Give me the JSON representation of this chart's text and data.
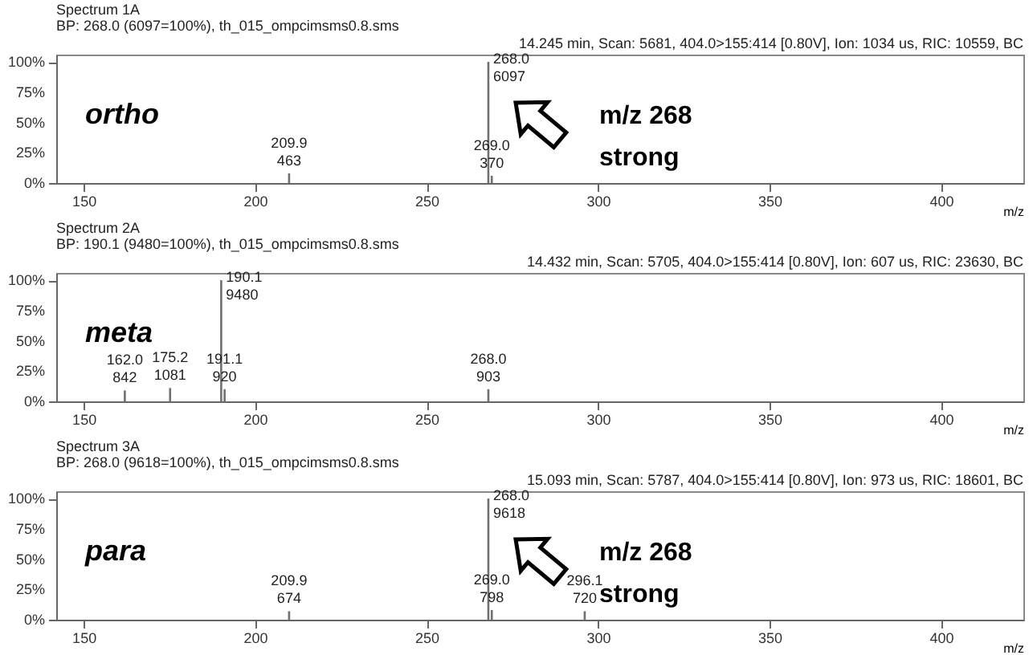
{
  "chart_data": [
    {
      "type": "bar",
      "title": "Spectrum 1A",
      "subtitle": "BP: 268.0 (6097=100%), th_015_ompcimsms0.8.sms",
      "xlabel": "m/z",
      "color": "#707070",
      "x": [
        209.9,
        268.0,
        269.0
      ],
      "values": [
        8,
        100,
        6
      ],
      "xlim": [
        142,
        424
      ],
      "xticks": [
        150,
        200,
        250,
        300,
        350,
        400
      ],
      "ylim": [
        0,
        106
      ],
      "yticks": [
        {
          "value": 0,
          "label": "0%"
        },
        {
          "value": 25,
          "label": "25%"
        },
        {
          "value": 50,
          "label": "50%"
        },
        {
          "value": 75,
          "label": "75%"
        },
        {
          "value": 100,
          "label": "100%"
        }
      ],
      "annotations": [
        "14.245 min, Scan: 5681, 404.0>155:414 [0.80V], Ion: 1034 us, RIC: 10559, BC",
        "ortho",
        {
          "text": "209.9\n463",
          "x": 209.9,
          "y": 8
        },
        {
          "text": "268.0\n6097",
          "x": 268.0,
          "y": 100
        },
        {
          "text": "269.0\n370",
          "x": 269.0,
          "y": 6
        },
        "m/z 268",
        "strong"
      ]
    },
    {
      "type": "bar",
      "title": "Spectrum 2A",
      "subtitle": "BP: 190.1 (9480=100%), th_015_ompcimsms0.8.sms",
      "xlabel": "m/z",
      "color": "#707070",
      "x": [
        162.0,
        175.2,
        190.1,
        191.1,
        268.0
      ],
      "values": [
        9,
        11,
        100,
        10,
        10
      ],
      "xlim": [
        142,
        424
      ],
      "xticks": [
        150,
        200,
        250,
        300,
        350,
        400
      ],
      "ylim": [
        0,
        106
      ],
      "yticks": [
        {
          "value": 0,
          "label": "0%"
        },
        {
          "value": 25,
          "label": "25%"
        },
        {
          "value": 50,
          "label": "50%"
        },
        {
          "value": 75,
          "label": "75%"
        },
        {
          "value": 100,
          "label": "100%"
        }
      ],
      "annotations": [
        "14.432 min, Scan: 5705, 404.0>155:414 [0.80V], Ion: 607 us, RIC: 23630, BC",
        "meta",
        {
          "text": "162.0\n842",
          "x": 162.0,
          "y": 9
        },
        {
          "text": "175.2\n1081",
          "x": 175.2,
          "y": 11
        },
        {
          "text": "190.1\n9480",
          "x": 190.1,
          "y": 100
        },
        {
          "text": "191.1\n920",
          "x": 191.1,
          "y": 10
        },
        {
          "text": "268.0\n903",
          "x": 268.0,
          "y": 10
        }
      ]
    },
    {
      "type": "bar",
      "title": "Spectrum 3A",
      "subtitle": "BP: 268.0 (9618=100%), th_015_ompcimsms0.8.sms",
      "xlabel": "m/z",
      "color": "#707070",
      "x": [
        209.9,
        268.0,
        269.0,
        296.1
      ],
      "values": [
        7,
        100,
        8,
        7
      ],
      "xlim": [
        142,
        424
      ],
      "xticks": [
        150,
        200,
        250,
        300,
        350,
        400
      ],
      "ylim": [
        0,
        106
      ],
      "yticks": [
        {
          "value": 0,
          "label": "0%"
        },
        {
          "value": 25,
          "label": "25%"
        },
        {
          "value": 50,
          "label": "50%"
        },
        {
          "value": 75,
          "label": "75%"
        },
        {
          "value": 100,
          "label": "100%"
        }
      ],
      "annotations": [
        "15.093 min, Scan: 5787, 404.0>155:414 [0.80V], Ion: 973 us, RIC: 18601, BC",
        "para",
        {
          "text": "209.9\n674",
          "x": 209.9,
          "y": 7
        },
        {
          "text": "268.0\n9618",
          "x": 268.0,
          "y": 100
        },
        {
          "text": "269.0\n798",
          "x": 269.0,
          "y": 8
        },
        {
          "text": "296.1\n720",
          "x": 296.1,
          "y": 7
        },
        "m/z 268",
        "strong"
      ]
    }
  ]
}
